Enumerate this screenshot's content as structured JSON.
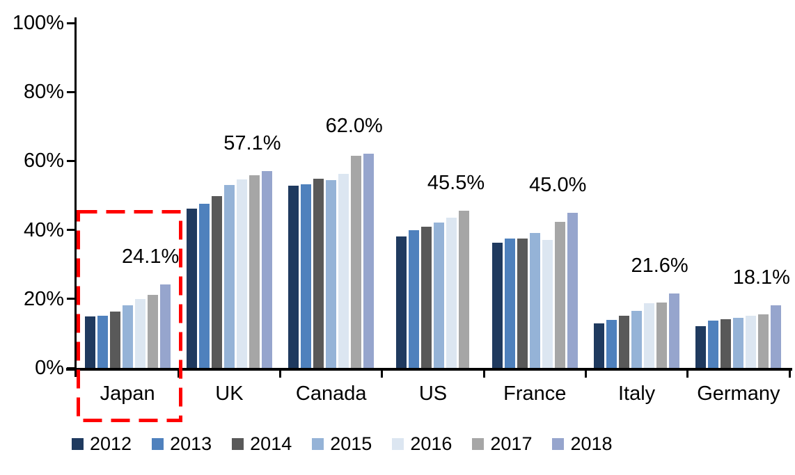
{
  "chart_data": {
    "type": "bar",
    "title": "",
    "categories": [
      "Japan",
      "UK",
      "Canada",
      "US",
      "France",
      "Italy",
      "Germany"
    ],
    "group_value_labels": [
      "24.1%",
      "57.1%",
      "62.0%",
      "45.5%",
      "45.0%",
      "21.6%",
      "18.1%"
    ],
    "series": [
      {
        "name": "2012",
        "color": "#1F3A5F",
        "values": [
          15.0,
          46.2,
          52.8,
          38.1,
          36.3,
          13.0,
          12.2
        ]
      },
      {
        "name": "2013",
        "color": "#4F81BD",
        "values": [
          15.2,
          47.6,
          53.3,
          39.9,
          37.5,
          13.9,
          13.7
        ]
      },
      {
        "name": "2014",
        "color": "#595959",
        "values": [
          16.3,
          49.8,
          54.8,
          41.0,
          37.5,
          15.1,
          14.1
        ]
      },
      {
        "name": "2015",
        "color": "#95B3D7",
        "values": [
          18.2,
          53.1,
          54.5,
          42.1,
          39.2,
          16.6,
          14.5
        ]
      },
      {
        "name": "2016",
        "color": "#DCE6F1",
        "values": [
          20.0,
          54.7,
          56.3,
          43.5,
          37.1,
          18.7,
          15.2
        ]
      },
      {
        "name": "2017",
        "color": "#A6A6A6",
        "values": [
          21.1,
          55.8,
          61.5,
          45.5,
          42.3,
          18.9,
          15.6
        ]
      },
      {
        "name": "2018",
        "color": "#96A5CD",
        "values": [
          24.1,
          57.1,
          62.0,
          null,
          45.0,
          21.6,
          18.1
        ]
      }
    ],
    "xlabel": "",
    "ylabel": "",
    "ylim": [
      0,
      100
    ],
    "yticks": [
      "0%",
      "20%",
      "40%",
      "60%",
      "80%",
      "100%"
    ],
    "grid": false,
    "legend_position": "bottom",
    "axis_color": "#000000",
    "highlight": {
      "category": "Japan",
      "color": "#FF0000",
      "style": "dashed"
    }
  }
}
